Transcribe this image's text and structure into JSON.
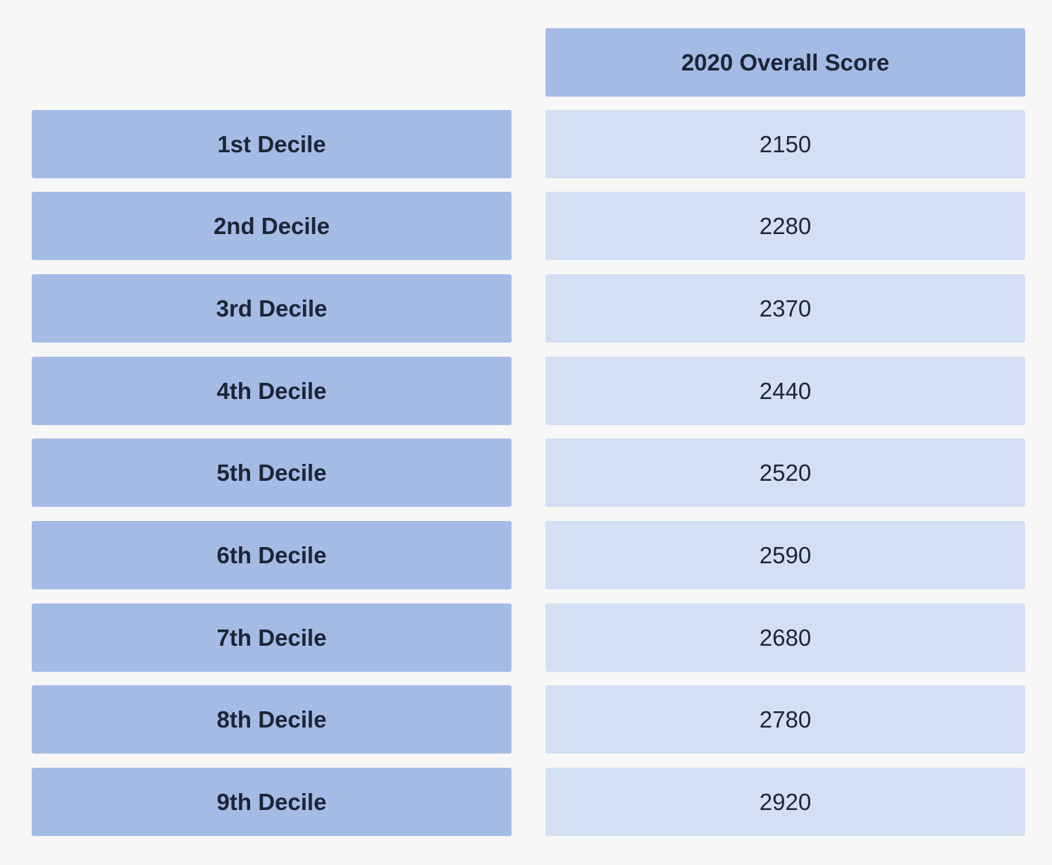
{
  "colors": {
    "background": "#f7f7f8",
    "header_fill": "#a4bbe5",
    "label_fill": "#a4bbe5",
    "value_fill": "#d3e0f3",
    "text": "#1c2537"
  },
  "chart_data": {
    "type": "table",
    "columns": [
      "",
      "2020 Overall Score"
    ],
    "rows": [
      {
        "label": "1st Decile",
        "value": "2150"
      },
      {
        "label": "2nd Decile",
        "value": "2280"
      },
      {
        "label": "3rd Decile",
        "value": "2370"
      },
      {
        "label": "4th Decile",
        "value": "2440"
      },
      {
        "label": "5th Decile",
        "value": "2520"
      },
      {
        "label": "6th Decile",
        "value": "2590"
      },
      {
        "label": "7th Decile",
        "value": "2680"
      },
      {
        "label": "8th Decile",
        "value": "2780"
      },
      {
        "label": "9th Decile",
        "value": "2920"
      }
    ]
  }
}
